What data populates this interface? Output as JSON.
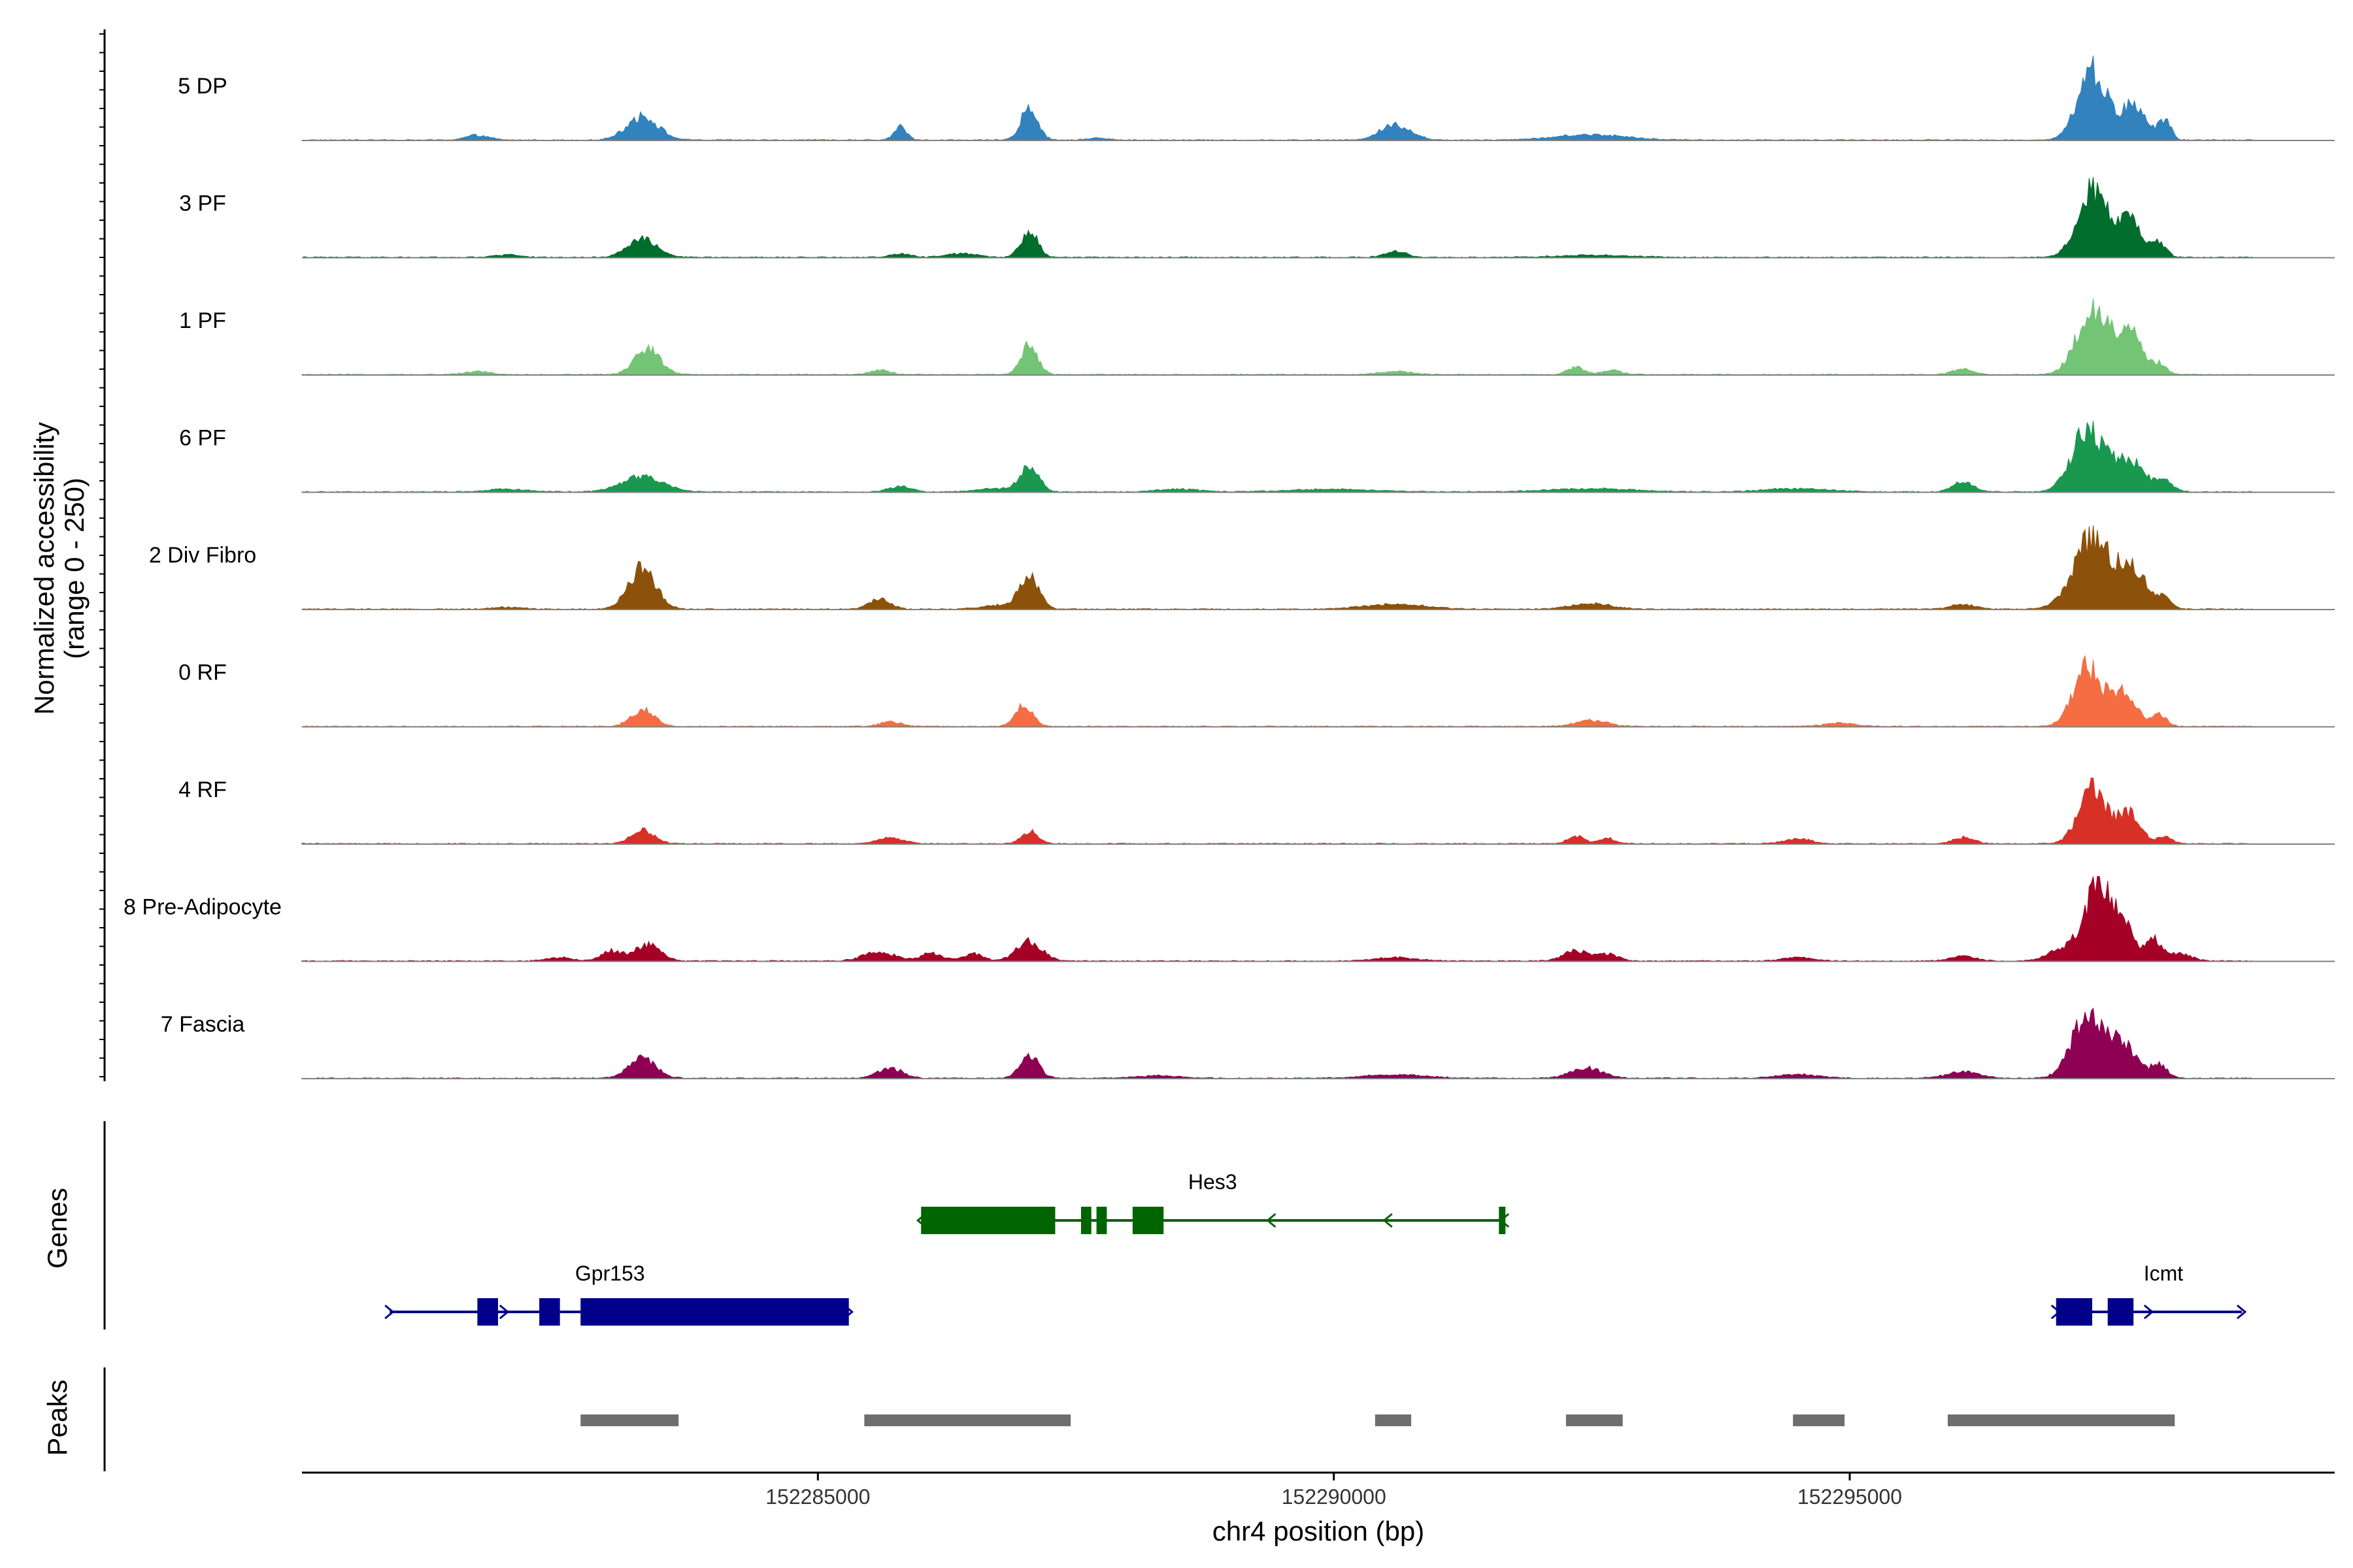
{
  "chart_data": {
    "type": "area",
    "ylabel": "Normalized accessibility",
    "ylabel_range": "(range 0 - 250)",
    "ylim": [
      0,
      250
    ],
    "xlabel": "chr4 position (bp)",
    "xlim": [
      152280000,
      152299700
    ],
    "x_ticks": [
      152285000,
      152290000,
      152295000
    ],
    "x_tick_labels": [
      "152285000",
      "152290000",
      "152295000"
    ],
    "grid": false,
    "tracks": [
      {
        "name": "5 DP",
        "color": "#3182bd",
        "peaks": [
          [
            152281700,
            14,
            110
          ],
          [
            152283300,
            72,
            150
          ],
          [
            152285800,
            40,
            60
          ],
          [
            152287050,
            100,
            80
          ],
          [
            152287700,
            6,
            100
          ],
          [
            152290600,
            46,
            150
          ],
          [
            152292500,
            16,
            350
          ],
          [
            152297350,
            210,
            140
          ],
          [
            152297750,
            100,
            120
          ],
          [
            152298050,
            60,
            60
          ]
        ]
      },
      {
        "name": "3 PF",
        "color": "#006d2c",
        "peaks": [
          [
            152282000,
            8,
            120
          ],
          [
            152283300,
            55,
            140
          ],
          [
            152285800,
            10,
            100
          ],
          [
            152286400,
            12,
            150
          ],
          [
            152287050,
            80,
            80
          ],
          [
            152290600,
            18,
            100
          ],
          [
            152292500,
            6,
            350
          ],
          [
            152297350,
            200,
            140
          ],
          [
            152297700,
            110,
            120
          ],
          [
            152298000,
            40,
            70
          ]
        ]
      },
      {
        "name": "1 PF",
        "color": "#74c476",
        "peaks": [
          [
            152281700,
            10,
            120
          ],
          [
            152283350,
            80,
            120
          ],
          [
            152285600,
            14,
            100
          ],
          [
            152287050,
            90,
            80
          ],
          [
            152290600,
            10,
            150
          ],
          [
            152292350,
            22,
            80
          ],
          [
            152292700,
            12,
            100
          ],
          [
            152296100,
            16,
            100
          ],
          [
            152297350,
            190,
            150
          ],
          [
            152297700,
            130,
            120
          ],
          [
            152298000,
            30,
            70
          ]
        ]
      },
      {
        "name": "6 PF",
        "color": "#1a9850",
        "peaks": [
          [
            152282000,
            8,
            200
          ],
          [
            152283300,
            45,
            200
          ],
          [
            152285800,
            18,
            100
          ],
          [
            152286700,
            10,
            150
          ],
          [
            152287050,
            75,
            90
          ],
          [
            152288500,
            8,
            200
          ],
          [
            152290000,
            8,
            400
          ],
          [
            152292500,
            10,
            400
          ],
          [
            152294500,
            10,
            300
          ],
          [
            152296100,
            30,
            100
          ],
          [
            152297300,
            185,
            150
          ],
          [
            152297700,
            100,
            150
          ],
          [
            152298050,
            30,
            80
          ]
        ]
      },
      {
        "name": "2 Div Fibro",
        "color": "#8c510a",
        "peaks": [
          [
            152282000,
            6,
            150
          ],
          [
            152283300,
            125,
            130
          ],
          [
            152285600,
            30,
            100
          ],
          [
            152286800,
            12,
            200
          ],
          [
            152287050,
            100,
            90
          ],
          [
            152290600,
            14,
            300
          ],
          [
            152292500,
            16,
            200
          ],
          [
            152296100,
            14,
            120
          ],
          [
            152297350,
            210,
            180
          ],
          [
            152297750,
            120,
            130
          ],
          [
            152298050,
            30,
            70
          ]
        ]
      },
      {
        "name": "0 RF",
        "color": "#f46d43",
        "peaks": [
          [
            152283300,
            50,
            110
          ],
          [
            152285700,
            14,
            100
          ],
          [
            152287000,
            65,
            80
          ],
          [
            152292500,
            18,
            150
          ],
          [
            152294900,
            10,
            150
          ],
          [
            152297300,
            180,
            130
          ],
          [
            152297650,
            110,
            120
          ],
          [
            152298000,
            35,
            70
          ]
        ]
      },
      {
        "name": "4 RF",
        "color": "#d73027",
        "peaks": [
          [
            152283300,
            40,
            110
          ],
          [
            152285700,
            18,
            120
          ],
          [
            152287050,
            38,
            80
          ],
          [
            152292350,
            22,
            80
          ],
          [
            152292650,
            16,
            80
          ],
          [
            152294500,
            14,
            130
          ],
          [
            152296100,
            18,
            100
          ],
          [
            152297350,
            165,
            130
          ],
          [
            152297700,
            90,
            110
          ],
          [
            152298050,
            20,
            70
          ]
        ]
      },
      {
        "name": "8 Pre-Adipocyte",
        "color": "#a50026",
        "peaks": [
          [
            152282500,
            10,
            120
          ],
          [
            152283000,
            30,
            100
          ],
          [
            152283350,
            50,
            120
          ],
          [
            152285600,
            28,
            150
          ],
          [
            152286100,
            22,
            100
          ],
          [
            152286500,
            22,
            100
          ],
          [
            152287050,
            60,
            120
          ],
          [
            152290600,
            10,
            200
          ],
          [
            152292350,
            30,
            120
          ],
          [
            152292650,
            20,
            100
          ],
          [
            152294500,
            10,
            150
          ],
          [
            152296100,
            14,
            120
          ],
          [
            152297100,
            40,
            150
          ],
          [
            152297400,
            215,
            120
          ],
          [
            152297650,
            100,
            120
          ],
          [
            152297950,
            60,
            70
          ],
          [
            152298200,
            25,
            100
          ]
        ]
      },
      {
        "name": "7 Fascia",
        "color": "#8e0152",
        "peaks": [
          [
            152283300,
            62,
            130
          ],
          [
            152285700,
            30,
            120
          ],
          [
            152287050,
            68,
            90
          ],
          [
            152288300,
            8,
            200
          ],
          [
            152290600,
            10,
            300
          ],
          [
            152292450,
            30,
            150
          ],
          [
            152294500,
            12,
            200
          ],
          [
            152296100,
            20,
            150
          ],
          [
            152297300,
            185,
            150
          ],
          [
            152297650,
            100,
            130
          ],
          [
            152298000,
            40,
            80
          ]
        ]
      }
    ],
    "genes_panel_label": "Genes",
    "peaks_panel_label": "Peaks",
    "genes": [
      {
        "name": "Hes3",
        "strand": "-",
        "color": "#006400",
        "start": 152286000,
        "end": 152291650,
        "exons": [
          [
            152286000,
            152287300
          ],
          [
            152287550,
            152287650
          ],
          [
            152287700,
            152287800
          ],
          [
            152288050,
            152288350
          ],
          [
            152291600,
            152291650
          ]
        ]
      },
      {
        "name": "Gpr153",
        "strand": "+",
        "color": "#00008b",
        "start": 152280850,
        "end": 152285300,
        "exons": [
          [
            152281700,
            152281900
          ],
          [
            152282300,
            152282500
          ],
          [
            152282700,
            152285300
          ]
        ]
      },
      {
        "name": "Icmt",
        "strand": "+",
        "color": "#00008b",
        "start": 152297000,
        "end": 152298800,
        "exons": [
          [
            152297000,
            152297350
          ],
          [
            152297500,
            152297750
          ]
        ]
      }
    ],
    "peak_regions": [
      [
        152282700,
        152283650
      ],
      [
        152285450,
        152287450
      ],
      [
        152290400,
        152290750
      ],
      [
        152292250,
        152292800
      ],
      [
        152294450,
        152294950
      ],
      [
        152295950,
        152298150
      ]
    ]
  }
}
